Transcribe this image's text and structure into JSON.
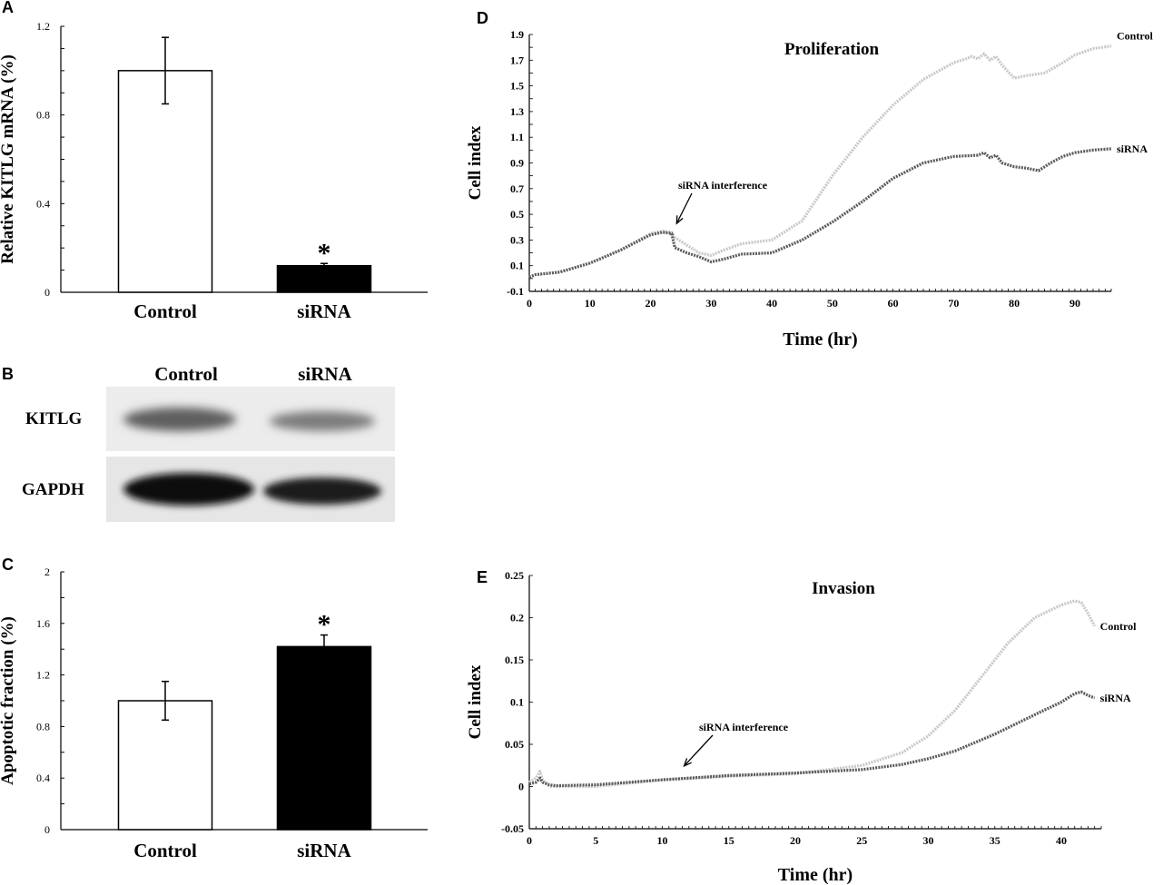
{
  "colors": {
    "control_line": "#c8c8c8",
    "sirna_line": "#5a5a5a",
    "control_bar": "#ffffff",
    "sirna_bar": "#000000"
  },
  "panels": {
    "a": {
      "letter": "A"
    },
    "b": {
      "letter": "B",
      "col_control": "Control",
      "col_sirna": "siRNA",
      "row1": "KITLG",
      "row2": "GAPDH"
    },
    "c": {
      "letter": "C"
    },
    "d": {
      "letter": "D"
    },
    "e": {
      "letter": "E"
    }
  },
  "chart_data": [
    {
      "panel": "A",
      "type": "bar",
      "categories": [
        "Control",
        "siRNA"
      ],
      "values": [
        1.0,
        0.12
      ],
      "errors": [
        0.15,
        0.01
      ],
      "significance": [
        "",
        "*"
      ],
      "ylabel": "Relative KITLG mRNA (%)",
      "ylim": [
        0,
        1.2
      ],
      "yticks": [
        "0",
        "0.4",
        "0.8",
        "1.2"
      ],
      "ytick_values": [
        0,
        0.4,
        0.8,
        1.2
      ],
      "minor_step": 0.1
    },
    {
      "panel": "C",
      "type": "bar",
      "categories": [
        "Control",
        "siRNA"
      ],
      "values": [
        1.0,
        1.42
      ],
      "errors": [
        0.15,
        0.09
      ],
      "significance": [
        "",
        "*"
      ],
      "ylabel": "Apoptotic fraction (%)",
      "ylim": [
        0,
        2
      ],
      "yticks": [
        "0",
        "0.4",
        "0.8",
        "1.2",
        "1.6",
        "2"
      ],
      "ytick_values": [
        0,
        0.4,
        0.8,
        1.2,
        1.6,
        2
      ],
      "minor_step": 0.2
    },
    {
      "panel": "D",
      "type": "line",
      "title": "Proliferation",
      "xlabel": "Time (hr)",
      "ylabel": "Cell index",
      "xlim": [
        0,
        96
      ],
      "ylim": [
        -0.1,
        1.9
      ],
      "xticks": [
        "0",
        "10",
        "20",
        "30",
        "40",
        "50",
        "60",
        "70",
        "80",
        "90"
      ],
      "xtick_values": [
        0,
        10,
        20,
        30,
        40,
        50,
        60,
        70,
        80,
        90
      ],
      "yticks": [
        "-0.1",
        "0.1",
        "0.3",
        "0.5",
        "0.7",
        "0.9",
        "1.1",
        "1.3",
        "1.5",
        "1.7",
        "1.9"
      ],
      "ytick_values": [
        -0.1,
        0.1,
        0.3,
        0.5,
        0.7,
        0.9,
        1.1,
        1.3,
        1.5,
        1.7,
        1.9
      ],
      "annotation": {
        "text": "siRNA interference",
        "x": 24,
        "y": 0.4
      },
      "series": [
        {
          "name": "Control",
          "x": [
            0,
            1,
            5,
            10,
            15,
            20,
            22,
            23.5,
            24,
            26,
            28,
            30,
            32,
            35,
            40,
            45,
            50,
            55,
            60,
            65,
            70,
            72,
            73,
            74,
            75,
            76,
            77,
            78,
            80,
            82,
            85,
            88,
            90,
            93,
            96
          ],
          "y": [
            0.01,
            0.03,
            0.05,
            0.12,
            0.22,
            0.35,
            0.37,
            0.36,
            0.32,
            0.26,
            0.2,
            0.18,
            0.22,
            0.27,
            0.3,
            0.45,
            0.8,
            1.1,
            1.35,
            1.55,
            1.68,
            1.71,
            1.73,
            1.71,
            1.75,
            1.7,
            1.73,
            1.66,
            1.56,
            1.58,
            1.6,
            1.68,
            1.74,
            1.79,
            1.81
          ]
        },
        {
          "name": "siRNA",
          "x": [
            0,
            1,
            5,
            10,
            15,
            20,
            22,
            23.5,
            24,
            26,
            28,
            30,
            32,
            35,
            40,
            45,
            50,
            55,
            60,
            65,
            70,
            74,
            75,
            76,
            77,
            78,
            80,
            82,
            84,
            86,
            88,
            90,
            93,
            96
          ],
          "y": [
            0.01,
            0.03,
            0.05,
            0.12,
            0.22,
            0.34,
            0.36,
            0.35,
            0.24,
            0.2,
            0.17,
            0.13,
            0.15,
            0.19,
            0.2,
            0.3,
            0.44,
            0.6,
            0.78,
            0.9,
            0.95,
            0.96,
            0.98,
            0.94,
            0.96,
            0.9,
            0.87,
            0.86,
            0.84,
            0.9,
            0.95,
            0.98,
            1.0,
            1.01
          ]
        }
      ]
    },
    {
      "panel": "E",
      "type": "line",
      "title": "Invasion",
      "xlabel": "Time (hr)",
      "ylabel": "Cell index",
      "xlim": [
        0,
        43
      ],
      "ylim": [
        -0.05,
        0.25
      ],
      "xticks": [
        "0",
        "5",
        "10",
        "15",
        "20",
        "25",
        "30",
        "35",
        "40"
      ],
      "xtick_values": [
        0,
        5,
        10,
        15,
        20,
        25,
        30,
        35,
        40
      ],
      "yticks": [
        "-0.05",
        "0",
        "0.05",
        "0.1",
        "0.15",
        "0.2",
        "0.25"
      ],
      "ytick_values": [
        -0.05,
        0,
        0.05,
        0.1,
        0.15,
        0.2,
        0.25
      ],
      "annotation": {
        "text": "siRNA interference",
        "x": 11.5,
        "y": 0.02
      },
      "series": [
        {
          "name": "Control",
          "x": [
            0,
            0.5,
            0.8,
            1.0,
            1.5,
            2,
            5,
            10,
            15,
            20,
            25,
            28,
            30,
            32,
            34,
            36,
            38,
            40,
            41,
            41.5,
            42,
            42.5
          ],
          "y": [
            0.005,
            0.01,
            0.018,
            0.008,
            0.0,
            0.0,
            0.0,
            0.008,
            0.012,
            0.015,
            0.025,
            0.04,
            0.06,
            0.09,
            0.13,
            0.17,
            0.2,
            0.215,
            0.22,
            0.218,
            0.205,
            0.19
          ]
        },
        {
          "name": "siRNA",
          "x": [
            0,
            0.5,
            0.8,
            1.0,
            1.5,
            2,
            5,
            10,
            15,
            20,
            25,
            28,
            30,
            32,
            35,
            38,
            40,
            41,
            41.5,
            42,
            42.5
          ],
          "y": [
            0.003,
            0.005,
            0.01,
            0.005,
            0.002,
            0.001,
            0.002,
            0.008,
            0.013,
            0.016,
            0.02,
            0.026,
            0.033,
            0.042,
            0.062,
            0.085,
            0.1,
            0.11,
            0.112,
            0.108,
            0.105
          ]
        }
      ]
    }
  ]
}
